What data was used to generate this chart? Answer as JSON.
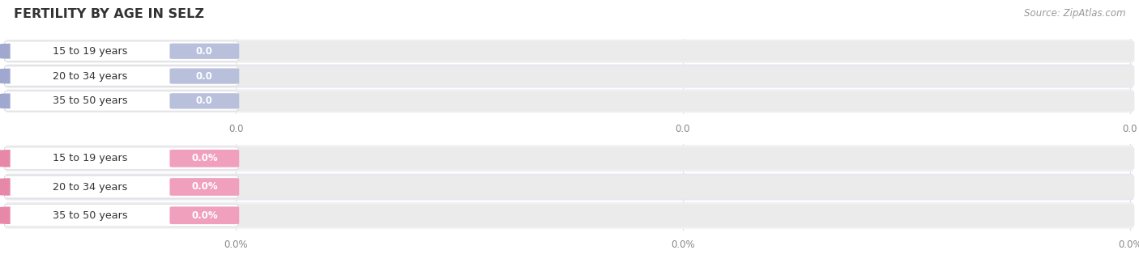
{
  "title": "FERTILITY BY AGE IN SELZ",
  "source": "Source: ZipAtlas.com",
  "top_section": {
    "categories": [
      "15 to 19 years",
      "20 to 34 years",
      "35 to 50 years"
    ],
    "values": [
      0.0,
      0.0,
      0.0
    ],
    "bar_color": "#a0a8d0",
    "value_bg": "#b8c0dc",
    "x_tick_labels": [
      "0.0",
      "0.0",
      "0.0"
    ]
  },
  "bottom_section": {
    "categories": [
      "15 to 19 years",
      "20 to 34 years",
      "35 to 50 years"
    ],
    "values": [
      0.0,
      0.0,
      0.0
    ],
    "bar_color": "#e888a8",
    "value_bg": "#f0a0bc",
    "x_tick_labels": [
      "0.0%",
      "0.0%",
      "0.0%"
    ]
  },
  "bg_color": "#ffffff",
  "row_bg_even": "#f0f0f4",
  "row_bg_odd": "#e8e8f0",
  "bar_track_color": "#ebebeb",
  "title_color": "#333333",
  "source_color": "#999999",
  "tick_color": "#888888",
  "separator_color": "#dddddd"
}
